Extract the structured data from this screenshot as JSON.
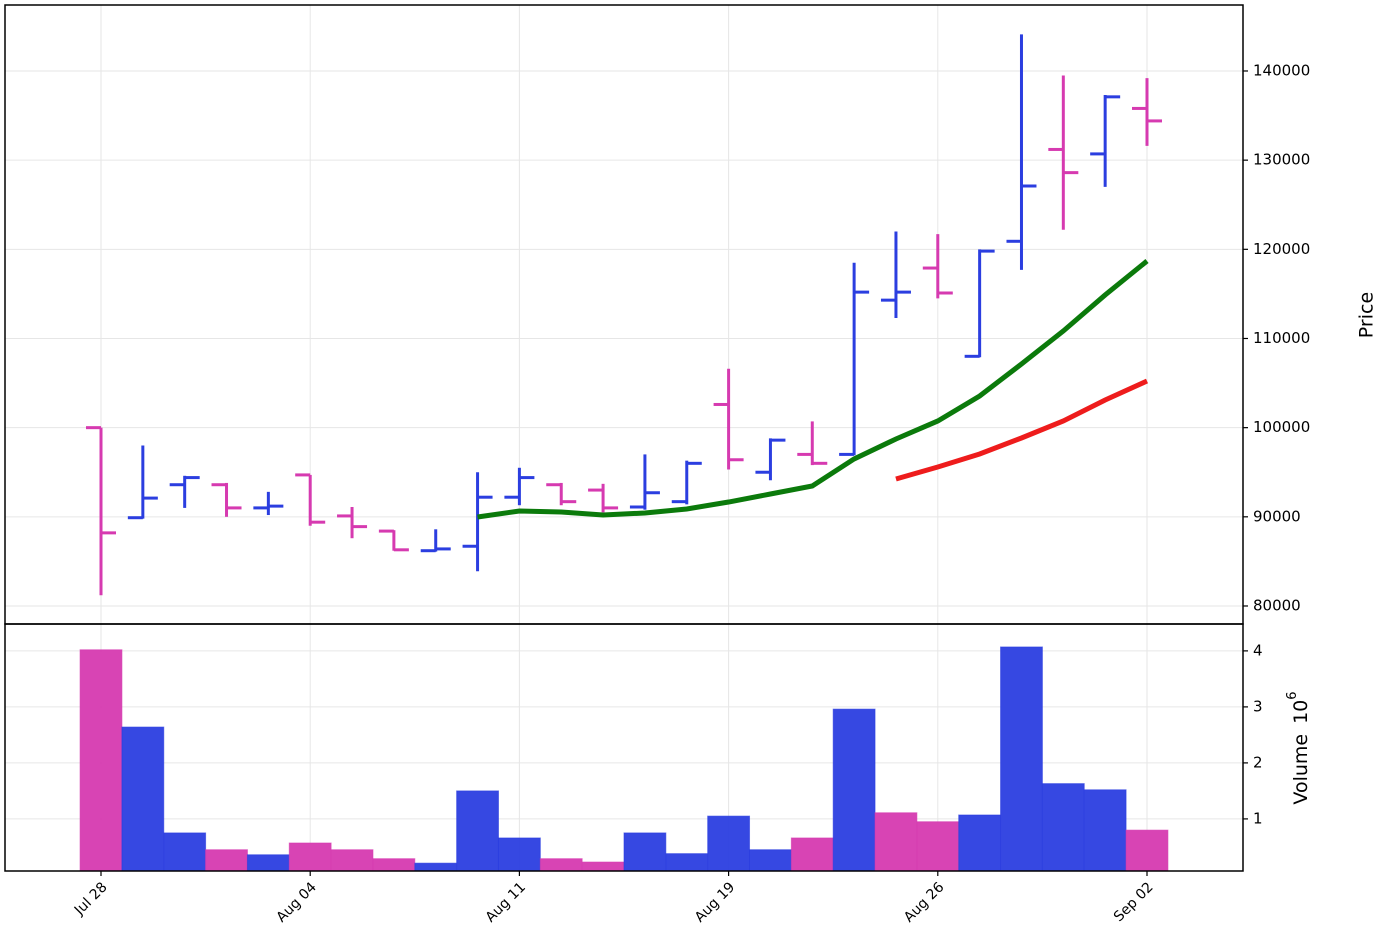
{
  "chart_data": {
    "type": "ohlc",
    "categories": [
      "Jul 28",
      null,
      null,
      null,
      null,
      "Aug 04",
      null,
      null,
      null,
      null,
      "Aug 11",
      null,
      null,
      null,
      null,
      "Aug 19",
      null,
      null,
      null,
      null,
      "Aug 26",
      null,
      null,
      null,
      null,
      "Sep 02"
    ],
    "grid": true,
    "price": {
      "ylabel": "Price",
      "ylim": [
        77980,
        147400
      ],
      "yticks": [
        80000,
        90000,
        100000,
        110000,
        120000,
        130000,
        140000
      ],
      "up_color": "#2b3ee0",
      "down_color": "#d63ab0",
      "open": [
        100000,
        89900,
        93600,
        93600,
        91000,
        94700,
        90100,
        88400,
        86200,
        86700,
        92200,
        93600,
        93000,
        91100,
        91700,
        102600,
        95000,
        97000,
        97000,
        114300,
        117900,
        108000,
        120900,
        131200,
        130700,
        135800
      ],
      "high": [
        100000,
        98000,
        94600,
        93800,
        92800,
        94700,
        91100,
        88500,
        88600,
        95000,
        95500,
        93800,
        93700,
        97000,
        96300,
        106600,
        98800,
        100700,
        118500,
        122000,
        121700,
        120000,
        144100,
        139500,
        137300,
        139200
      ],
      "low": [
        81200,
        89800,
        91000,
        90000,
        90200,
        89000,
        87600,
        86200,
        86100,
        83900,
        91300,
        91300,
        90500,
        90800,
        91400,
        95300,
        94100,
        95800,
        96900,
        112300,
        114500,
        107900,
        117700,
        122200,
        127000,
        131600
      ],
      "close": [
        88200,
        92100,
        94400,
        91000,
        91200,
        89400,
        88900,
        86300,
        86400,
        92200,
        94400,
        91700,
        91000,
        92700,
        96000,
        96400,
        98600,
        96000,
        115200,
        115200,
        115100,
        119800,
        127100,
        128600,
        137100,
        134400
      ],
      "moving_averages": [
        {
          "color": "#0b7a0b",
          "values": [
            null,
            null,
            null,
            null,
            null,
            null,
            null,
            null,
            null,
            89980,
            90650,
            90540,
            90210,
            90430,
            90880,
            91660,
            92560,
            93460,
            96490,
            98730,
            100750,
            103550,
            107140,
            110840,
            114880,
            118690
          ]
        },
        {
          "color": "#ee1c1c",
          "values": [
            null,
            null,
            null,
            null,
            null,
            null,
            null,
            null,
            null,
            null,
            null,
            null,
            null,
            null,
            null,
            null,
            null,
            null,
            null,
            94240,
            95590,
            97050,
            98840,
            100750,
            103100,
            105230
          ]
        }
      ]
    },
    "volume": {
      "ylabel": "Volume",
      "scale": {
        "base": "10",
        "exponent": "6"
      },
      "ylim": [
        0.07,
        4.48
      ],
      "yticks": [
        1,
        2,
        3,
        4
      ],
      "values": [
        4.02,
        2.64,
        0.75,
        0.45,
        0.36,
        0.57,
        0.45,
        0.29,
        0.21,
        1.5,
        0.66,
        0.29,
        0.23,
        0.75,
        0.38,
        1.05,
        0.45,
        0.66,
        2.96,
        1.11,
        0.95,
        1.07,
        4.07,
        1.63,
        1.52,
        0.8
      ],
      "colors": [
        "#d63ab0",
        "#2b3ee0",
        "#2b3ee0",
        "#d63ab0",
        "#2b3ee0",
        "#d63ab0",
        "#d63ab0",
        "#d63ab0",
        "#2b3ee0",
        "#2b3ee0",
        "#2b3ee0",
        "#d63ab0",
        "#d63ab0",
        "#2b3ee0",
        "#2b3ee0",
        "#2b3ee0",
        "#2b3ee0",
        "#d63ab0",
        "#2b3ee0",
        "#d63ab0",
        "#d63ab0",
        "#2b3ee0",
        "#2b3ee0",
        "#2b3ee0",
        "#2b3ee0",
        "#d63ab0"
      ]
    }
  }
}
